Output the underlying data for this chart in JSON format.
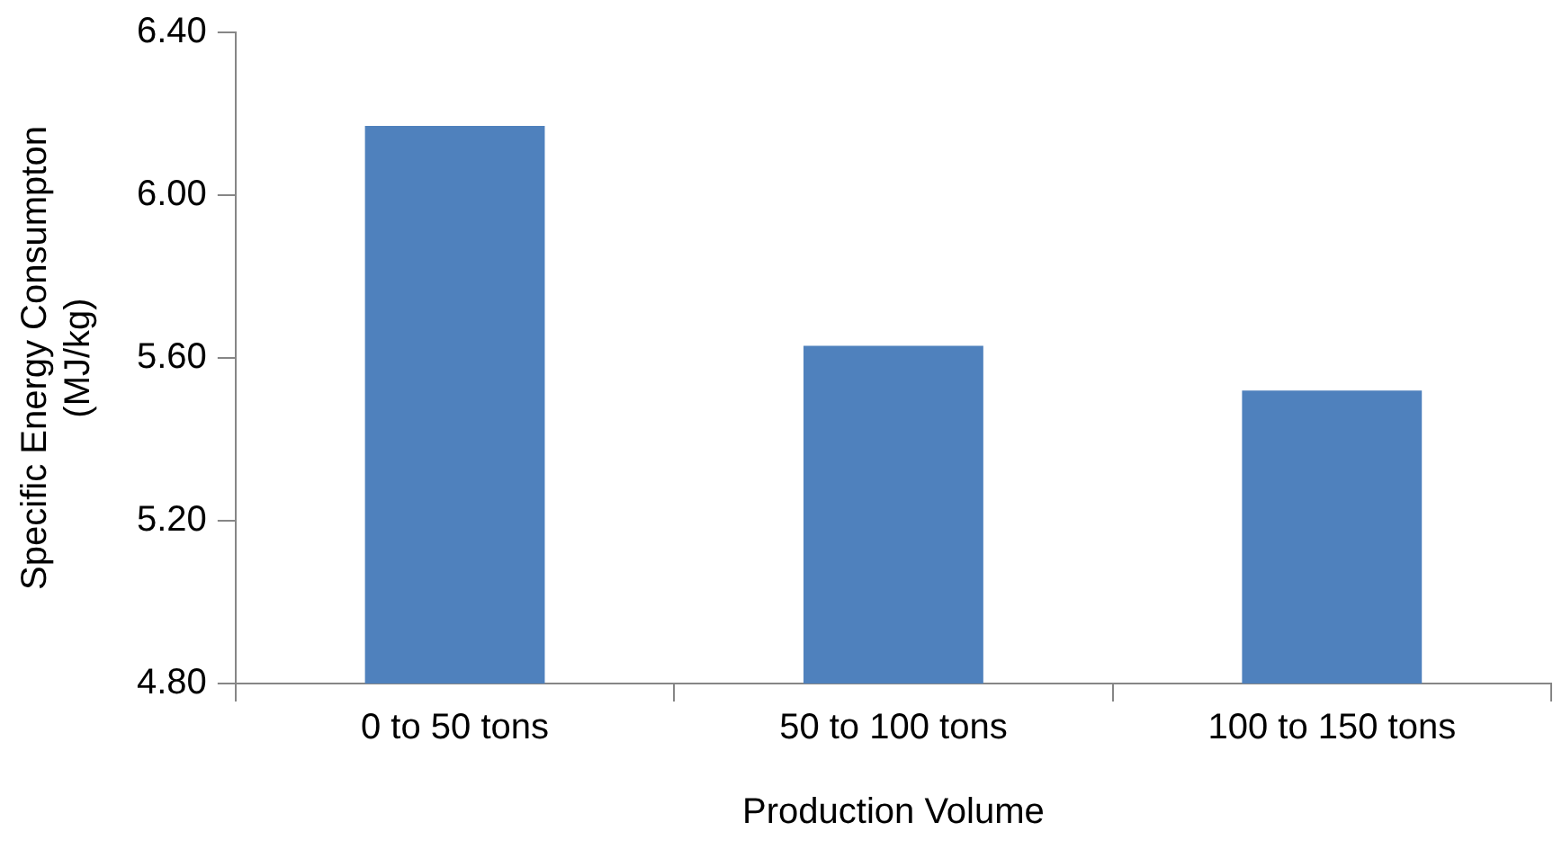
{
  "chart_data": {
    "type": "bar",
    "xlabel": "Production Volume",
    "ylabel": "Specific Energy Consumpton\n(MJ/kg)",
    "categories": [
      "0 to 50 tons",
      "50 to 100 tons",
      "100 to 150 tons"
    ],
    "values": [
      6.17,
      5.63,
      5.52
    ],
    "color": "#4f81bd",
    "ylim": [
      4.8,
      6.4
    ],
    "yticks": [
      {
        "value": 4.8,
        "label": "4.80"
      },
      {
        "value": 5.2,
        "label": "5.20"
      },
      {
        "value": 5.6,
        "label": "5.60"
      },
      {
        "value": 6.0,
        "label": "6.00"
      },
      {
        "value": 6.4,
        "label": "6.40"
      }
    ],
    "grid": false,
    "legend": false
  }
}
